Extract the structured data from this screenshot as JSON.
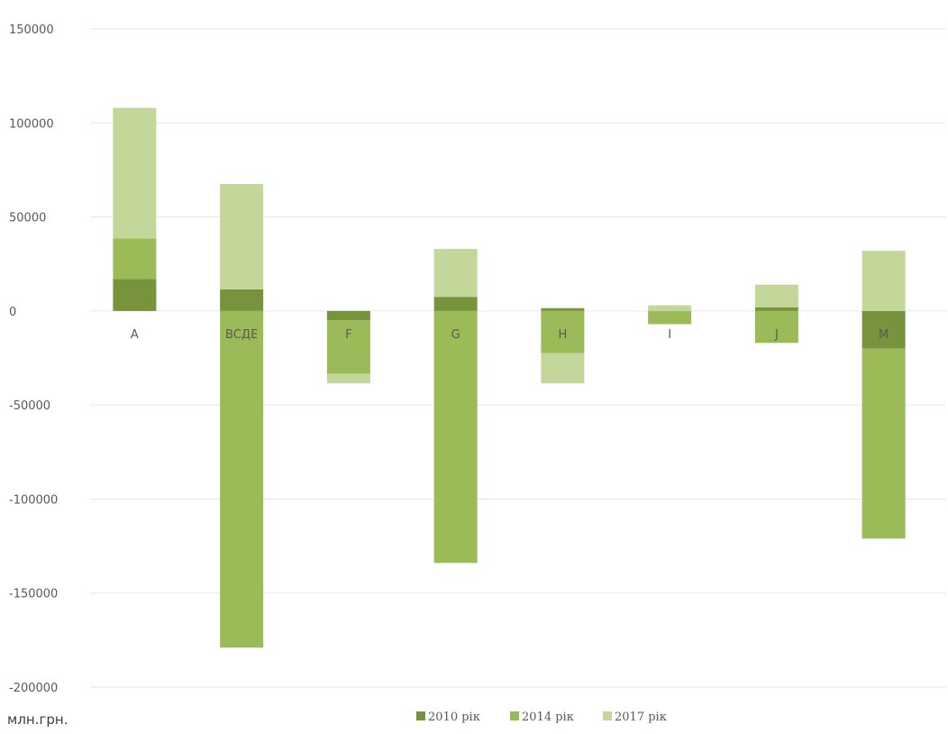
{
  "colors": {
    "series_2010": "#77933c",
    "series_2014": "#9bbb59",
    "series_2017": "#c4d79b",
    "grid": "#e6e6e6",
    "text": "#595959"
  },
  "unit_label": "млн.грн.",
  "chart_data": {
    "type": "bar",
    "stacked": true,
    "categories": [
      "A",
      "BCДЕ",
      "F",
      "G",
      "H",
      "I",
      "J",
      "M"
    ],
    "series": [
      {
        "name": "2010 рік",
        "values": [
          17000,
          11500,
          -5000,
          7500,
          1500,
          0,
          2000,
          -20000
        ]
      },
      {
        "name": "2014 рік",
        "values": [
          21500,
          -179000,
          -28500,
          -134000,
          -22500,
          -7000,
          -17000,
          -101000
        ]
      },
      {
        "name": "2017 рік",
        "values": [
          69500,
          56000,
          -5000,
          25500,
          -16000,
          3000,
          12000,
          32000
        ]
      }
    ],
    "ylim": [
      -200000,
      150000
    ],
    "yticks": [
      150000,
      100000,
      50000,
      0,
      -50000,
      -100000,
      -150000,
      -200000
    ],
    "ytick_labels": [
      "150000",
      "100000",
      "50000",
      "0",
      "-50000",
      "-100000",
      "-150000",
      "-200000"
    ],
    "grid": true,
    "legend_position": "bottom"
  }
}
